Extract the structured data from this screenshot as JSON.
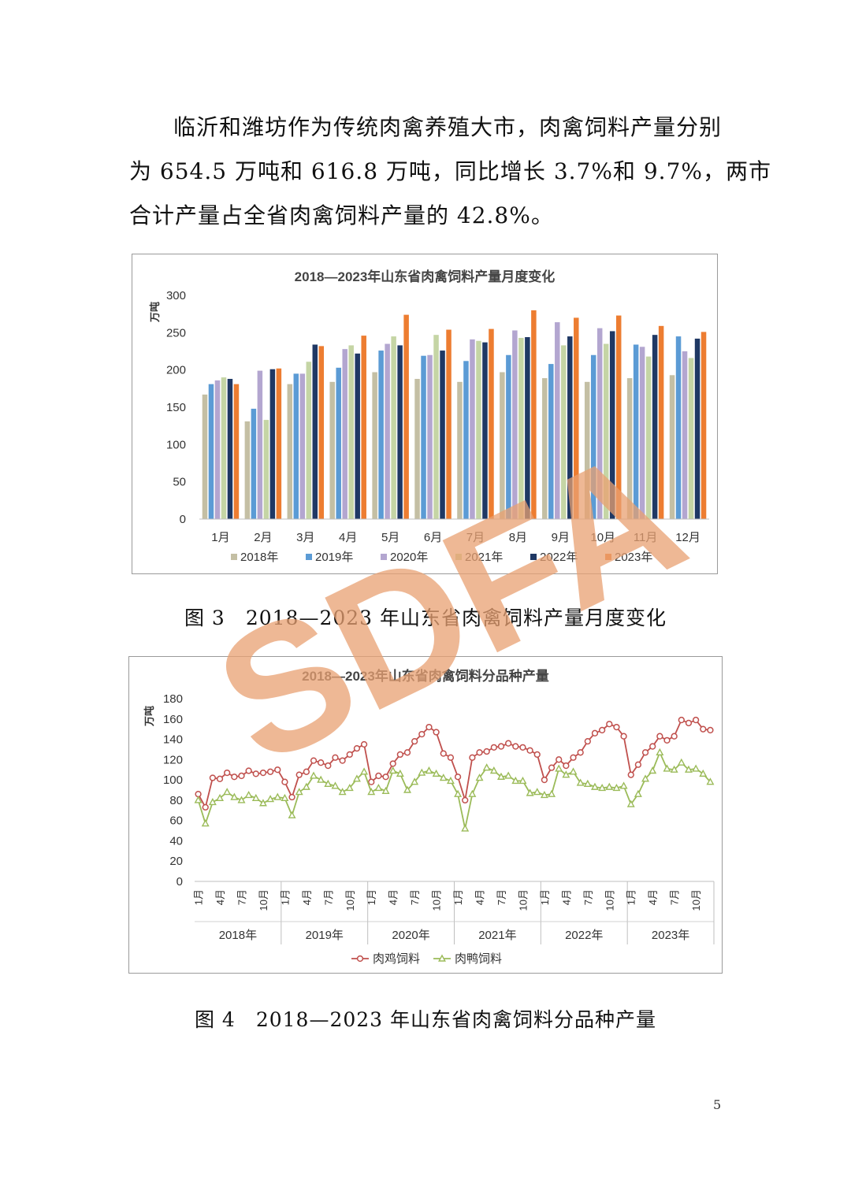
{
  "paragraph": {
    "lines": [
      "临沂和潍坊作为传统肉禽养殖大市，肉禽饲料产量分别",
      "为 654.5 万吨和 616.8 万吨，同比增长 3.7%和 9.7%，两市",
      "合计产量占全省肉禽饲料产量的 42.8%。"
    ]
  },
  "figure3": {
    "caption": "图 3　2018—2023 年山东省肉禽饲料产量月度变化",
    "chart_data": {
      "type": "bar",
      "title": "2018—2023年山东省肉禽饲料产量月度变化",
      "ylabel": "万吨",
      "xlabel": "",
      "ylim": [
        0,
        300
      ],
      "yticks": [
        "0",
        "50",
        "100",
        "150",
        "200",
        "250",
        "300"
      ],
      "categories": [
        "1月",
        "2月",
        "3月",
        "4月",
        "5月",
        "6月",
        "7月",
        "8月",
        "9月",
        "10月",
        "11月",
        "12月"
      ],
      "legend_position": "bottom",
      "grid": false,
      "series": [
        {
          "name": "2018年",
          "color": "#c4bfa4",
          "values": [
            167,
            131,
            181,
            184,
            197,
            188,
            184,
            197,
            189,
            184,
            189,
            193
          ]
        },
        {
          "name": "2019年",
          "color": "#5b9bd5",
          "values": [
            181,
            148,
            195,
            203,
            226,
            219,
            212,
            220,
            208,
            220,
            234,
            245
          ]
        },
        {
          "name": "2020年",
          "color": "#b3a6d0",
          "values": [
            186,
            199,
            195,
            228,
            235,
            220,
            241,
            253,
            264,
            256,
            231,
            225
          ]
        },
        {
          "name": "2021年",
          "color": "#c5d5a5",
          "values": [
            190,
            133,
            211,
            233,
            245,
            247,
            239,
            243,
            233,
            235,
            218,
            216
          ]
        },
        {
          "name": "2022年",
          "color": "#1f3864",
          "values": [
            188,
            201,
            234,
            222,
            233,
            226,
            237,
            244,
            245,
            252,
            247,
            242
          ]
        },
        {
          "name": "2023年",
          "color": "#ed7d31",
          "values": [
            181,
            202,
            232,
            246,
            274,
            254,
            255,
            280,
            270,
            273,
            259,
            251
          ]
        }
      ]
    }
  },
  "figure4": {
    "caption": "图 4　2018—2023 年山东省肉禽饲料分品种产量",
    "chart_data": {
      "type": "line",
      "title": "2018—2023年山东省肉禽饲料分品种产量",
      "ylabel": "万吨",
      "ylim": [
        0,
        180
      ],
      "yticks": [
        "0",
        "20",
        "40",
        "60",
        "80",
        "100",
        "120",
        "140",
        "160",
        "180"
      ],
      "month_ticks": [
        "1月",
        "4月",
        "7月",
        "10月"
      ],
      "years": [
        "2018年",
        "2019年",
        "2020年",
        "2021年",
        "2022年",
        "2023年"
      ],
      "legend_position": "bottom",
      "grid": false,
      "series": [
        {
          "name": "肉鸡饲料",
          "color": "#c0504d",
          "marker": "circle",
          "values": [
            86,
            73,
            102,
            101,
            107,
            103,
            104,
            109,
            106,
            107,
            108,
            110,
            98,
            83,
            105,
            108,
            119,
            117,
            114,
            122,
            119,
            125,
            131,
            135,
            98,
            104,
            103,
            116,
            125,
            127,
            138,
            145,
            152,
            147,
            126,
            122,
            103,
            80,
            122,
            127,
            128,
            132,
            133,
            136,
            133,
            132,
            129,
            125,
            100,
            112,
            120,
            114,
            122,
            127,
            138,
            146,
            149,
            155,
            152,
            143,
            105,
            115,
            127,
            133,
            143,
            139,
            143,
            159,
            156,
            159,
            150,
            149
          ]
        },
        {
          "name": "肉鸭饲料",
          "color": "#9bbb59",
          "marker": "triangle",
          "values": [
            80,
            57,
            78,
            82,
            88,
            83,
            80,
            85,
            82,
            77,
            81,
            83,
            82,
            65,
            88,
            93,
            104,
            100,
            96,
            94,
            88,
            92,
            101,
            108,
            88,
            92,
            89,
            109,
            106,
            90,
            98,
            107,
            109,
            106,
            102,
            99,
            86,
            52,
            86,
            102,
            112,
            109,
            103,
            104,
            99,
            99,
            87,
            88,
            85,
            86,
            111,
            105,
            108,
            97,
            96,
            93,
            92,
            93,
            92,
            94,
            76,
            86,
            101,
            109,
            127,
            111,
            110,
            117,
            110,
            111,
            106,
            98
          ]
        }
      ]
    }
  },
  "watermark": {
    "text": "SDFA",
    "color": "#e8a071"
  },
  "page_number": "5"
}
